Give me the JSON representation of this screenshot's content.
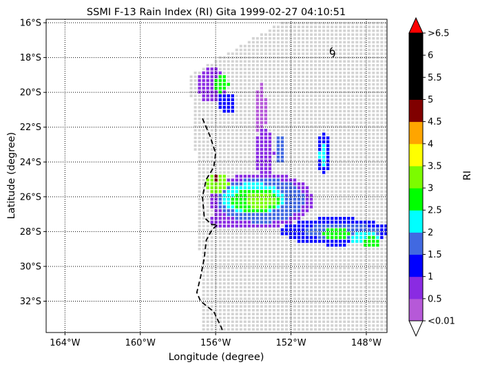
{
  "chart_data": {
    "type": "heatmap",
    "title": "SSMI F-13 Rain Index (RI) Gita 1999-02-27 04:10:51",
    "xlabel": "Longitude (degree)",
    "ylabel": "Latitude (degree)",
    "xlim": [
      -165.0,
      -146.9
    ],
    "ylim": [
      -33.8,
      -15.8
    ],
    "x_ticks": [
      {
        "value": -164,
        "label": "164°W"
      },
      {
        "value": -160,
        "label": "160°W"
      },
      {
        "value": -156,
        "label": "156°W"
      },
      {
        "value": -152,
        "label": "152°W"
      },
      {
        "value": -148,
        "label": "148°W"
      }
    ],
    "y_ticks": [
      {
        "value": -16,
        "label": "16°S"
      },
      {
        "value": -18,
        "label": "18°S"
      },
      {
        "value": -20,
        "label": "20°S"
      },
      {
        "value": -22,
        "label": "22°S"
      },
      {
        "value": -24,
        "label": "24°S"
      },
      {
        "value": -26,
        "label": "26°S"
      },
      {
        "value": -28,
        "label": "28°S"
      },
      {
        "value": -30,
        "label": "30°S"
      },
      {
        "value": -32,
        "label": "32°S"
      }
    ],
    "grid": true,
    "colorbar": {
      "label": "RI",
      "colors": [
        "#b659d8",
        "#8a2be2",
        "#0000ff",
        "#4169e1",
        "#00ffff",
        "#00ff00",
        "#7cfc00",
        "#ffff00",
        "#ffa500",
        "#800000",
        "#000000",
        "#000000",
        "#000000"
      ],
      "under_color": "#ffffff",
      "over_color": "#ff0000",
      "bounds": [
        0.01,
        0.5,
        1,
        1.5,
        2,
        2.5,
        3,
        3.5,
        4,
        4.5,
        5,
        5.5,
        6,
        6.5
      ],
      "tick_labels": [
        "<0.01",
        "0.5",
        "1",
        "1.5",
        "2",
        "2.5",
        "3",
        "3.5",
        "4",
        "4.5",
        "5",
        "5.5",
        "6",
        ">6.5"
      ]
    },
    "no_rain_color": "#d3d3d3",
    "swath_outline": [
      [
        -157.4,
        -19.0
      ],
      [
        -152.4,
        -15.9
      ],
      [
        -146.9,
        -15.8
      ],
      [
        -146.9,
        -33.8
      ],
      [
        -156.8,
        -33.8
      ],
      [
        -156.9,
        -26.0
      ]
    ],
    "rain_regions": [
      {
        "lon": -156.2,
        "lat": -19.6,
        "rx": 0.8,
        "ry": 1.0,
        "level": 1
      },
      {
        "lon": -155.7,
        "lat": -19.5,
        "rx": 0.4,
        "ry": 0.5,
        "level": 5
      },
      {
        "lon": -155.4,
        "lat": -20.6,
        "rx": 0.5,
        "ry": 0.6,
        "level": 2
      },
      {
        "lon": -153.6,
        "lat": -21.0,
        "rx": 0.3,
        "ry": 1.5,
        "level": 0
      },
      {
        "lon": -153.4,
        "lat": -23.5,
        "rx": 0.5,
        "ry": 1.4,
        "level": 1
      },
      {
        "lon": -152.6,
        "lat": -23.3,
        "rx": 0.3,
        "ry": 0.8,
        "level": 3
      },
      {
        "lon": -150.3,
        "lat": -23.5,
        "rx": 0.4,
        "ry": 1.2,
        "level": 2
      },
      {
        "lon": -150.3,
        "lat": -23.6,
        "rx": 0.2,
        "ry": 0.7,
        "level": 4
      },
      {
        "lon": -153.6,
        "lat": -26.2,
        "rx": 2.8,
        "ry": 1.6,
        "level": 1
      },
      {
        "lon": -153.6,
        "lat": -26.2,
        "rx": 2.3,
        "ry": 1.3,
        "level": 3
      },
      {
        "lon": -154.0,
        "lat": -26.1,
        "rx": 1.7,
        "ry": 0.9,
        "level": 4
      },
      {
        "lon": -153.9,
        "lat": -26.2,
        "rx": 1.3,
        "ry": 0.7,
        "level": 5
      },
      {
        "lon": -153.6,
        "lat": -26.2,
        "rx": 0.8,
        "ry": 0.45,
        "level": 6
      },
      {
        "lon": -155.9,
        "lat": -25.2,
        "rx": 0.6,
        "ry": 0.6,
        "level": 6
      },
      {
        "lon": -156.0,
        "lat": -24.9,
        "rx": 0.15,
        "ry": 0.15,
        "level": 9
      },
      {
        "lon": -155.2,
        "lat": -27.3,
        "rx": 1.1,
        "ry": 0.6,
        "level": 1
      },
      {
        "lon": -149.6,
        "lat": -28.0,
        "rx": 2.9,
        "ry": 0.8,
        "level": 2
      },
      {
        "lon": -149.3,
        "lat": -28.0,
        "rx": 2.0,
        "ry": 0.45,
        "level": 3
      },
      {
        "lon": -149.6,
        "lat": -28.1,
        "rx": 0.8,
        "ry": 0.35,
        "level": 5
      },
      {
        "lon": -148.0,
        "lat": -28.4,
        "rx": 0.8,
        "ry": 0.4,
        "level": 4
      },
      {
        "lon": -147.7,
        "lat": -28.6,
        "rx": 0.5,
        "ry": 0.3,
        "level": 5
      }
    ],
    "coastline": [
      [
        -156.7,
        -21.5
      ],
      [
        -156.3,
        -22.5
      ],
      [
        -156.0,
        -23.5
      ],
      [
        -156.1,
        -24.3
      ],
      [
        -156.5,
        -25.0
      ],
      [
        -156.7,
        -26.0
      ],
      [
        -156.6,
        -27.2
      ],
      [
        -156.2,
        -27.6
      ],
      [
        -155.9,
        -27.6
      ],
      [
        -156.2,
        -27.9
      ],
      [
        -156.5,
        -28.5
      ],
      [
        -156.6,
        -29.5
      ],
      [
        -156.8,
        -30.6
      ],
      [
        -157.0,
        -31.5
      ],
      [
        -156.8,
        -32.0
      ],
      [
        -156.1,
        -32.6
      ],
      [
        -155.7,
        -33.5
      ],
      [
        -155.6,
        -33.8
      ]
    ],
    "storm_symbol_position": [
      -149.8,
      -17.7
    ]
  }
}
